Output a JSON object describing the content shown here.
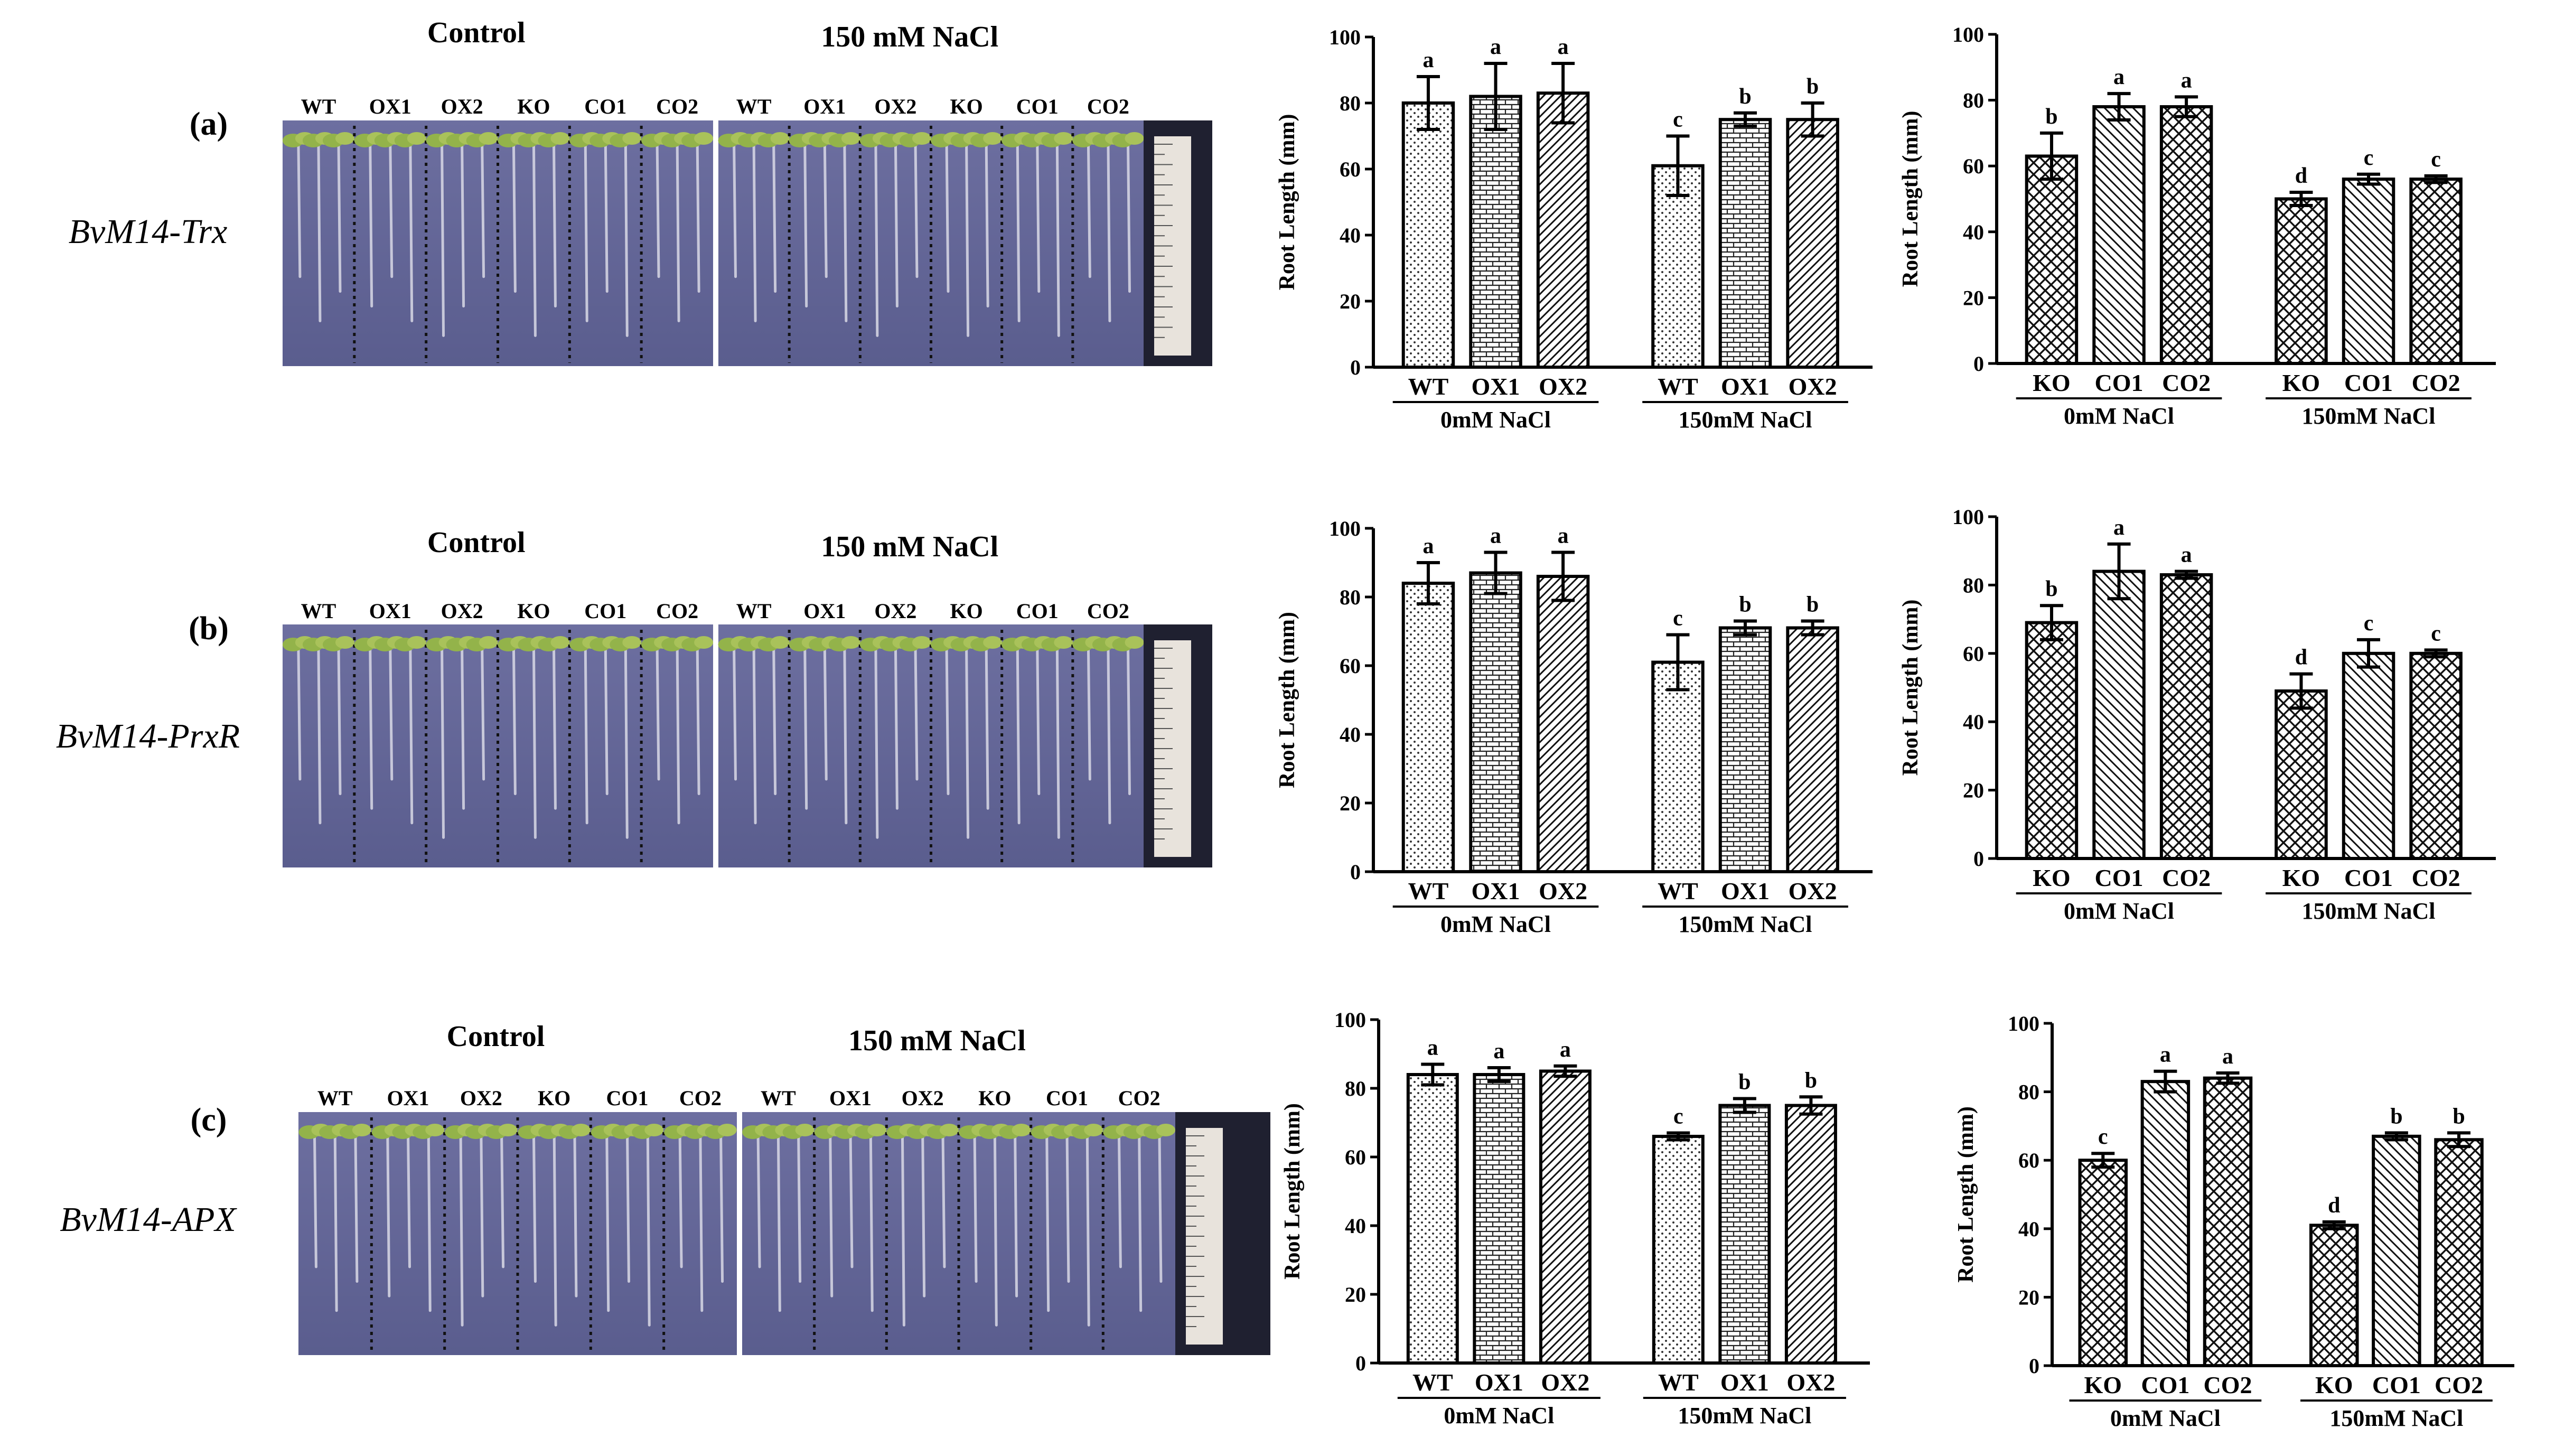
{
  "rows": [
    {
      "label": "(a)",
      "gene": "BvM14-Trx",
      "photo": {
        "control_label": "Control",
        "salt_label": "150 mM NaCl",
        "left_lines": [
          "WT",
          "OX1",
          "OX2",
          "KO",
          "CO1",
          "CO2"
        ],
        "right_lines": [
          "WT",
          "OX1",
          "OX2",
          "KO",
          "CO1",
          "CO2"
        ]
      }
    },
    {
      "label": "(b)",
      "gene": "BvM14-PrxR",
      "photo": {
        "control_label": "Control",
        "salt_label": "150 mM NaCl",
        "left_lines": [
          "WT",
          "OX1",
          "OX2",
          "KO",
          "CO1",
          "CO2"
        ],
        "right_lines": [
          "WT",
          "OX1",
          "OX2",
          "KO",
          "CO1",
          "CO2"
        ]
      }
    },
    {
      "label": "(c)",
      "gene": "BvM14-APX",
      "photo": {
        "control_label": "Control",
        "salt_label": "150 mM NaCl",
        "left_lines": [
          "WT",
          "OX1",
          "OX2",
          "KO",
          "CO1",
          "CO2"
        ],
        "right_lines": [
          "WT",
          "OX1",
          "OX2",
          "KO",
          "CO1",
          "CO2"
        ]
      }
    }
  ],
  "chart_data": [
    {
      "id": "a-ox",
      "type": "bar",
      "ylabel": "Root Length (mm)",
      "ylim": [
        0,
        100
      ],
      "yticks": [
        0,
        20,
        40,
        60,
        80,
        100
      ],
      "groups": [
        "0mM NaCl",
        "150mM NaCl"
      ],
      "categories": [
        "WT",
        "OX1",
        "OX2"
      ],
      "patterns": [
        "dots",
        "brick",
        "diag"
      ],
      "series": [
        {
          "name": "0mM NaCl",
          "values": [
            80,
            82,
            83
          ],
          "errors": [
            8,
            10,
            9
          ],
          "letters": [
            "a",
            "a",
            "a"
          ]
        },
        {
          "name": "150mM NaCl",
          "values": [
            61,
            75,
            75
          ],
          "errors": [
            9,
            2,
            5
          ],
          "letters": [
            "c",
            "b",
            "b"
          ]
        }
      ]
    },
    {
      "id": "a-ko",
      "type": "bar",
      "ylabel": "Root Length (mm)",
      "ylim": [
        0,
        100
      ],
      "yticks": [
        0,
        20,
        40,
        60,
        80,
        100
      ],
      "groups": [
        "0mM NaCl",
        "150mM NaCl"
      ],
      "categories": [
        "KO",
        "CO1",
        "CO2"
      ],
      "patterns": [
        "cross",
        "back",
        "cross"
      ],
      "series": [
        {
          "name": "0mM NaCl",
          "values": [
            63,
            78,
            78
          ],
          "errors": [
            7,
            4,
            3
          ],
          "letters": [
            "b",
            "a",
            "a"
          ]
        },
        {
          "name": "150mM NaCl",
          "values": [
            50,
            56,
            56
          ],
          "errors": [
            2,
            1.5,
            1
          ],
          "letters": [
            "d",
            "c",
            "c"
          ]
        }
      ]
    },
    {
      "id": "b-ox",
      "type": "bar",
      "ylabel": "Root Length (mm)",
      "ylim": [
        0,
        100
      ],
      "yticks": [
        0,
        20,
        40,
        60,
        80,
        100
      ],
      "groups": [
        "0mM NaCl",
        "150mM NaCl"
      ],
      "categories": [
        "WT",
        "OX1",
        "OX2"
      ],
      "patterns": [
        "dots",
        "brick",
        "diag"
      ],
      "series": [
        {
          "name": "0mM NaCl",
          "values": [
            84,
            87,
            86
          ],
          "errors": [
            6,
            6,
            7
          ],
          "letters": [
            "a",
            "a",
            "a"
          ]
        },
        {
          "name": "150mM NaCl",
          "values": [
            61,
            71,
            71
          ],
          "errors": [
            8,
            2,
            2
          ],
          "letters": [
            "c",
            "b",
            "b"
          ]
        }
      ]
    },
    {
      "id": "b-ko",
      "type": "bar",
      "ylabel": "Root Length (mm)",
      "ylim": [
        0,
        100
      ],
      "yticks": [
        0,
        20,
        40,
        60,
        80,
        100
      ],
      "groups": [
        "0mM NaCl",
        "150mM NaCl"
      ],
      "categories": [
        "KO",
        "CO1",
        "CO2"
      ],
      "patterns": [
        "cross",
        "back",
        "cross"
      ],
      "series": [
        {
          "name": "0mM NaCl",
          "values": [
            69,
            84,
            83
          ],
          "errors": [
            5,
            8,
            1
          ],
          "letters": [
            "b",
            "a",
            "a"
          ]
        },
        {
          "name": "150mM NaCl",
          "values": [
            49,
            60,
            60
          ],
          "errors": [
            5,
            4,
            1
          ],
          "letters": [
            "d",
            "c",
            "c"
          ]
        }
      ]
    },
    {
      "id": "c-ox",
      "type": "bar",
      "ylabel": "Root Length (mm)",
      "ylim": [
        0,
        100
      ],
      "yticks": [
        0,
        20,
        40,
        60,
        80,
        100
      ],
      "groups": [
        "0mM NaCl",
        "150mM NaCl"
      ],
      "categories": [
        "WT",
        "OX1",
        "OX2"
      ],
      "patterns": [
        "dots",
        "brick",
        "diag"
      ],
      "series": [
        {
          "name": "0mM NaCl",
          "values": [
            84,
            84,
            85
          ],
          "errors": [
            3,
            2,
            1.5
          ],
          "letters": [
            "a",
            "a",
            "a"
          ]
        },
        {
          "name": "150mM NaCl",
          "values": [
            66,
            75,
            75
          ],
          "errors": [
            1,
            2,
            2.5
          ],
          "letters": [
            "c",
            "b",
            "b"
          ]
        }
      ]
    },
    {
      "id": "c-ko",
      "type": "bar",
      "ylabel": "Root Length (mm)",
      "ylim": [
        0,
        100
      ],
      "yticks": [
        0,
        20,
        40,
        60,
        80,
        100
      ],
      "groups": [
        "0mM NaCl",
        "150mM NaCl"
      ],
      "categories": [
        "KO",
        "CO1",
        "CO2"
      ],
      "patterns": [
        "cross",
        "back",
        "cross"
      ],
      "series": [
        {
          "name": "0mM NaCl",
          "values": [
            60,
            83,
            84
          ],
          "errors": [
            2,
            3,
            1.5
          ],
          "letters": [
            "c",
            "a",
            "a"
          ]
        },
        {
          "name": "150mM NaCl",
          "values": [
            41,
            67,
            66
          ],
          "errors": [
            1,
            1,
            2
          ],
          "letters": [
            "d",
            "b",
            "b"
          ]
        }
      ]
    }
  ]
}
